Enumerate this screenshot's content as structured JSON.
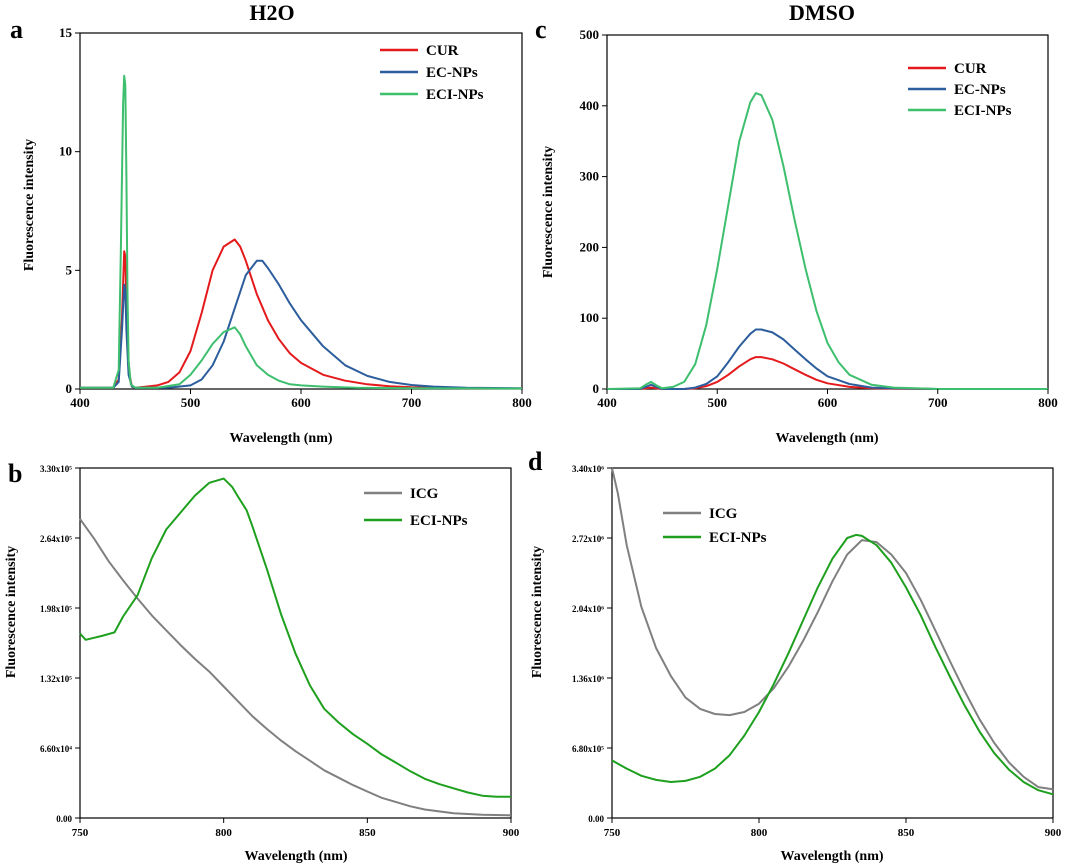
{
  "figure": {
    "chart_data": [
      {
        "panel": "a",
        "type": "line",
        "title": "H2O",
        "xlabel": "Wavelength (nm)",
        "ylabel": "Fluorescence intensity",
        "xlim": [
          400,
          800
        ],
        "ylim": [
          0,
          15
        ],
        "xticks": [
          400,
          500,
          600,
          700,
          800
        ],
        "yticks": [
          0,
          5,
          10,
          15
        ],
        "xtick_labels": [
          "400",
          "500",
          "600",
          "700",
          "800"
        ],
        "ytick_labels": [
          "0",
          "5",
          "10",
          "15"
        ],
        "legend_position": "top-right",
        "series": [
          {
            "name": "CUR",
            "color": "#e41a1c",
            "x": [
              400,
              430,
              435,
              438,
              440,
              441,
              442,
              444,
              447,
              450,
              460,
              470,
              480,
              490,
              500,
              510,
              520,
              530,
              540,
              545,
              550,
              560,
              570,
              580,
              590,
              600,
              620,
              640,
              660,
              680,
              700,
              720,
              750,
              800
            ],
            "values": [
              0.05,
              0.05,
              0.4,
              3.0,
              5.8,
              5.6,
              3.5,
              0.8,
              0.1,
              0.05,
              0.1,
              0.15,
              0.3,
              0.7,
              1.6,
              3.2,
              5.0,
              6.0,
              6.3,
              6.0,
              5.4,
              4.0,
              2.9,
              2.1,
              1.5,
              1.1,
              0.6,
              0.35,
              0.2,
              0.12,
              0.07,
              0.05,
              0.03,
              0.02
            ]
          },
          {
            "name": "EC-NPs",
            "color": "#2c5d9c",
            "x": [
              400,
              430,
              435,
              438,
              440,
              441,
              442,
              444,
              447,
              450,
              480,
              500,
              510,
              520,
              530,
              540,
              550,
              560,
              565,
              570,
              580,
              590,
              600,
              620,
              640,
              660,
              680,
              700,
              720,
              750,
              800
            ],
            "values": [
              0.05,
              0.05,
              0.3,
              2.5,
              4.4,
              4.2,
              2.5,
              0.6,
              0.1,
              0.05,
              0.05,
              0.15,
              0.4,
              1.0,
              2.0,
              3.4,
              4.8,
              5.4,
              5.4,
              5.1,
              4.4,
              3.6,
              2.9,
              1.8,
              1.0,
              0.55,
              0.3,
              0.17,
              0.1,
              0.05,
              0.03
            ]
          },
          {
            "name": "ECI-NPs",
            "color": "#3dbf6e",
            "x": [
              400,
              430,
              435,
              437,
              439,
              440,
              441,
              442,
              443,
              444,
              446,
              450,
              470,
              490,
              500,
              510,
              520,
              530,
              535,
              540,
              545,
              550,
              560,
              570,
              580,
              590,
              600,
              620,
              650,
              700,
              800
            ],
            "values": [
              0.05,
              0.05,
              0.8,
              6.0,
              12.0,
              13.2,
              12.8,
              9.0,
              4.0,
              1.2,
              0.2,
              0.05,
              0.05,
              0.2,
              0.6,
              1.2,
              1.9,
              2.4,
              2.5,
              2.6,
              2.3,
              1.8,
              1.0,
              0.6,
              0.35,
              0.2,
              0.15,
              0.1,
              0.05,
              0.03,
              0.02
            ]
          }
        ]
      },
      {
        "panel": "c",
        "type": "line",
        "title": "DMSO",
        "xlabel": "Wavelength (nm)",
        "ylabel": "Fluorescence intensity",
        "xlim": [
          400,
          800
        ],
        "ylim": [
          0,
          500
        ],
        "xticks": [
          400,
          500,
          600,
          700,
          800
        ],
        "yticks": [
          0,
          100,
          200,
          300,
          400,
          500
        ],
        "xtick_labels": [
          "400",
          "500",
          "600",
          "700",
          "800"
        ],
        "ytick_labels": [
          "0",
          "100",
          "200",
          "300",
          "400",
          "500"
        ],
        "legend_position": "top-right",
        "series": [
          {
            "name": "CUR",
            "color": "#e41a1c",
            "x": [
              400,
              430,
              435,
              440,
              445,
              450,
              470,
              480,
              490,
              500,
              510,
              520,
              530,
              535,
              540,
              550,
              560,
              570,
              580,
              590,
              600,
              620,
              640,
              660,
              700,
              800
            ],
            "values": [
              0,
              0,
              1,
              2,
              1,
              0,
              0,
              1,
              4,
              10,
              20,
              32,
              42,
              45,
              45,
              42,
              36,
              28,
              20,
              13,
              8,
              3,
              1,
              0.5,
              0,
              0
            ]
          },
          {
            "name": "EC-NPs",
            "color": "#2c5d9c",
            "x": [
              400,
              430,
              435,
              440,
              445,
              450,
              470,
              480,
              490,
              500,
              510,
              520,
              530,
              535,
              540,
              550,
              560,
              570,
              580,
              590,
              600,
              620,
              640,
              660,
              700,
              800
            ],
            "values": [
              0,
              0,
              3,
              6,
              3,
              0,
              0,
              2,
              7,
              18,
              38,
              60,
              78,
              84,
              84,
              80,
              70,
              56,
              42,
              29,
              18,
              7,
              2,
              1,
              0,
              0
            ]
          },
          {
            "name": "ECI-NPs",
            "color": "#3dbf6e",
            "x": [
              400,
              430,
              435,
              440,
              445,
              450,
              460,
              470,
              480,
              490,
              500,
              510,
              520,
              530,
              535,
              540,
              550,
              560,
              570,
              580,
              590,
              600,
              610,
              620,
              640,
              660,
              680,
              700,
              800
            ],
            "values": [
              0,
              1,
              6,
              10,
              5,
              1,
              3,
              10,
              35,
              90,
              170,
              260,
              350,
              405,
              418,
              415,
              380,
              315,
              240,
              170,
              110,
              65,
              38,
              20,
              6,
              2,
              1,
              0,
              0
            ]
          }
        ]
      },
      {
        "panel": "b",
        "type": "line",
        "title": "",
        "xlabel": "Wavelength (nm)",
        "ylabel": "Fluorescence intensity",
        "xlim": [
          750,
          900
        ],
        "ylim": [
          0,
          330000
        ],
        "xticks": [
          750,
          800,
          850,
          900
        ],
        "yticks": [
          0,
          66000,
          132000,
          198000,
          264000,
          330000
        ],
        "xtick_labels": [
          "750",
          "800",
          "850",
          "900"
        ],
        "ytick_labels": [
          "0.00",
          "6.60x10⁴",
          "1.32x10⁵",
          "1.98x10⁵",
          "2.64x10⁵",
          "3.30x10⁵"
        ],
        "legend_position": "top-right",
        "series": [
          {
            "name": "ICG",
            "color": "#808080",
            "x": [
              750,
              755,
              760,
              765,
              770,
              775,
              780,
              785,
              790,
              795,
              800,
              805,
              810,
              815,
              820,
              825,
              830,
              835,
              840,
              845,
              850,
              855,
              860,
              865,
              870,
              880,
              890,
              900
            ],
            "values": [
              282000,
              263000,
              242000,
              224000,
              207000,
              191000,
              177000,
              163000,
              150000,
              138000,
              124000,
              110000,
              96000,
              84000,
              73000,
              63000,
              54000,
              45000,
              38000,
              31000,
              25000,
              19000,
              15000,
              11000,
              8000,
              4500,
              3000,
              2500
            ]
          },
          {
            "name": "ECI-NPs",
            "color": "#1ea01e",
            "x": [
              750,
              752,
              755,
              758,
              762,
              765,
              770,
              775,
              780,
              785,
              790,
              795,
              800,
              803,
              805,
              808,
              810,
              815,
              820,
              825,
              830,
              835,
              840,
              845,
              850,
              855,
              860,
              865,
              870,
              875,
              880,
              885,
              890,
              895,
              900
            ],
            "values": [
              174000,
              168000,
              170000,
              172000,
              175000,
              190000,
              210000,
              245000,
              272000,
              288000,
              304000,
              316000,
              320000,
              312000,
              303000,
              290000,
              275000,
              235000,
              192000,
              155000,
              125000,
              103000,
              90000,
              79000,
              70000,
              60000,
              52000,
              44000,
              37000,
              32000,
              28000,
              24000,
              21000,
              20000,
              20000
            ]
          }
        ]
      },
      {
        "panel": "d",
        "type": "line",
        "title": "",
        "xlabel": "Wavelength (nm)",
        "ylabel": "Fluorescence intensity",
        "xlim": [
          750,
          900
        ],
        "ylim": [
          0,
          3400000
        ],
        "xticks": [
          750,
          800,
          850,
          900
        ],
        "yticks": [
          0,
          680000,
          1360000,
          2040000,
          2720000,
          3400000
        ],
        "xtick_labels": [
          "750",
          "800",
          "850",
          "900"
        ],
        "ytick_labels": [
          "0.00",
          "6.80x10⁵",
          "1.36x10⁶",
          "2.04x10⁶",
          "2.72x10⁶",
          "3.40x10⁶"
        ],
        "legend_position": "top-left",
        "series": [
          {
            "name": "ICG",
            "color": "#808080",
            "x": [
              750,
              752,
              755,
              760,
              765,
              770,
              775,
              780,
              785,
              790,
              795,
              800,
              805,
              810,
              815,
              820,
              825,
              830,
              835,
              840,
              845,
              850,
              855,
              860,
              865,
              870,
              875,
              880,
              885,
              890,
              895,
              900
            ],
            "values": [
              3400000,
              3150000,
              2650000,
              2050000,
              1650000,
              1380000,
              1170000,
              1060000,
              1010000,
              1000000,
              1030000,
              1110000,
              1260000,
              1470000,
              1720000,
              2000000,
              2300000,
              2560000,
              2700000,
              2680000,
              2560000,
              2380000,
              2120000,
              1820000,
              1520000,
              1230000,
              960000,
              730000,
              540000,
              400000,
              300000,
              280000
            ]
          },
          {
            "name": "ECI-NPs",
            "color": "#1ea01e",
            "x": [
              750,
              755,
              760,
              765,
              770,
              775,
              780,
              785,
              790,
              795,
              800,
              805,
              810,
              815,
              820,
              825,
              830,
              833,
              835,
              840,
              845,
              850,
              855,
              860,
              865,
              870,
              875,
              880,
              885,
              890,
              895,
              900
            ],
            "values": [
              560000,
              480000,
              410000,
              370000,
              350000,
              360000,
              400000,
              480000,
              610000,
              800000,
              1030000,
              1300000,
              1600000,
              1920000,
              2240000,
              2520000,
              2720000,
              2750000,
              2740000,
              2650000,
              2480000,
              2240000,
              1970000,
              1660000,
              1370000,
              1090000,
              840000,
              630000,
              470000,
              350000,
              270000,
              230000
            ]
          }
        ]
      }
    ]
  }
}
